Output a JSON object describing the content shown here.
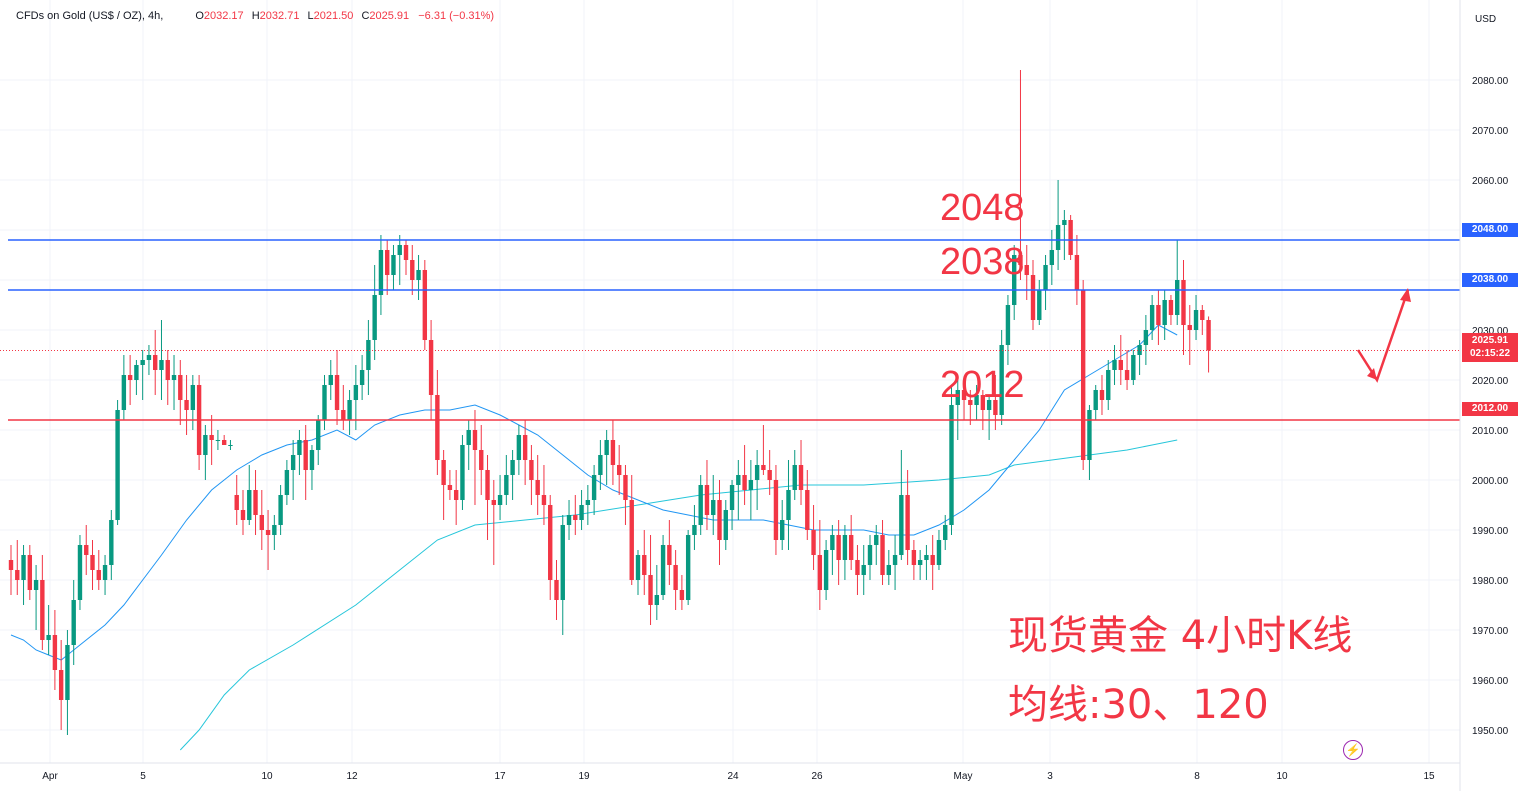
{
  "header": {
    "symbol": "CFDs on Gold (US$ / OZ), 4h,",
    "open_label": "O",
    "open": "2032.17",
    "high_label": "H",
    "high": "2032.71",
    "low_label": "L",
    "low": "2021.50",
    "close_label": "C",
    "close": "2025.91",
    "change": "−6.31 (−0.31%)"
  },
  "price_axis": {
    "currency": "USD",
    "ticks": [
      "2080.00",
      "2070.00",
      "2060.00",
      "2050.00",
      "2040.00",
      "2030.00",
      "2020.00",
      "2010.00",
      "2000.00",
      "1990.00",
      "1980.00",
      "1970.00",
      "1960.00",
      "1950.00"
    ]
  },
  "time_axis": {
    "labels": [
      "Apr",
      "5",
      "10",
      "12",
      "17",
      "19",
      "24",
      "26",
      "May",
      "3",
      "8",
      "10",
      "15"
    ]
  },
  "levels": [
    {
      "value": "2048.00",
      "color": "#2962ff"
    },
    {
      "value": "2038.00",
      "color": "#2962ff"
    },
    {
      "value": "2012.00",
      "color": "#f23645"
    }
  ],
  "current_price": {
    "value": "2025.91",
    "countdown": "02:15:22"
  },
  "annotations": {
    "level_2048": "2048",
    "level_2038": "2038",
    "level_2012": "2012",
    "title_line1": "现货黄金 4小时K线",
    "title_line2": "均线:30、120"
  },
  "colors": {
    "up": "#089981",
    "down": "#f23645",
    "ma30": "#2196f3",
    "ma120": "#26c6da",
    "grid": "#f0f3fa"
  },
  "icons": {
    "flash": "lightning-icon"
  },
  "chart_data": {
    "type": "candlestick",
    "interval": "4h",
    "ylim": [
      1941,
      2090
    ],
    "ohlc": [
      [
        1984,
        1987,
        1977,
        1982
      ],
      [
        1982,
        1988,
        1977,
        1980
      ],
      [
        1980,
        1987,
        1975,
        1985
      ],
      [
        1985,
        1987,
        1976,
        1978
      ],
      [
        1978,
        1983,
        1970,
        1980
      ],
      [
        1980,
        1985,
        1966,
        1968
      ],
      [
        1968,
        1975,
        1965,
        1969
      ],
      [
        1969,
        1974,
        1958,
        1962
      ],
      [
        1962,
        1968,
        1950,
        1956
      ],
      [
        1956,
        1970,
        1949,
        1967
      ],
      [
        1967,
        1980,
        1963,
        1976
      ],
      [
        1976,
        1989,
        1974,
        1987
      ],
      [
        1987,
        1991,
        1981,
        1985
      ],
      [
        1985,
        1988,
        1978,
        1982
      ],
      [
        1982,
        1986,
        1978,
        1980
      ],
      [
        1980,
        1985,
        1977,
        1983
      ],
      [
        1983,
        1994,
        1980,
        1992
      ],
      [
        1992,
        2016,
        1991,
        2014
      ],
      [
        2014,
        2025,
        2012,
        2021
      ],
      [
        2021,
        2025,
        2015,
        2020
      ],
      [
        2020,
        2024,
        2017,
        2023
      ],
      [
        2023,
        2026,
        2016,
        2024
      ],
      [
        2024,
        2027,
        2021,
        2025
      ],
      [
        2025,
        2030,
        2017,
        2022
      ],
      [
        2022,
        2032,
        2016,
        2024
      ],
      [
        2024,
        2026,
        2015,
        2020
      ],
      [
        2020,
        2025,
        2014,
        2021
      ],
      [
        2021,
        2024,
        2011,
        2016
      ],
      [
        2016,
        2021,
        2009,
        2014
      ],
      [
        2014,
        2021,
        2010,
        2019
      ],
      [
        2019,
        2021,
        2002,
        2005
      ],
      [
        2005,
        2011,
        2000,
        2009
      ],
      [
        2009,
        2013,
        2003,
        2008
      ],
      [
        2008,
        2010,
        2006,
        2008
      ],
      [
        2008,
        2009,
        2007,
        2007
      ],
      [
        2007,
        2008,
        2006,
        2007
      ],
      [
        1997,
        2001,
        1991,
        1994
      ],
      [
        1994,
        1998,
        1989,
        1992
      ],
      [
        1992,
        2003,
        1991,
        1998
      ],
      [
        1998,
        2002,
        1989,
        1993
      ],
      [
        1993,
        1998,
        1986,
        1990
      ],
      [
        1990,
        1994,
        1982,
        1989
      ],
      [
        1989,
        1993,
        1986,
        1991
      ],
      [
        1991,
        1999,
        1989,
        1997
      ],
      [
        1997,
        2004,
        1995,
        2002
      ],
      [
        2002,
        2008,
        1996,
        2005
      ],
      [
        2005,
        2010,
        2001,
        2008
      ],
      [
        2008,
        2011,
        1996,
        2002
      ],
      [
        2002,
        2007,
        1998,
        2006
      ],
      [
        2006,
        2013,
        2003,
        2012
      ],
      [
        2012,
        2021,
        2010,
        2019
      ],
      [
        2019,
        2024,
        2016,
        2021
      ],
      [
        2021,
        2026,
        2011,
        2014
      ],
      [
        2014,
        2019,
        2010,
        2012
      ],
      [
        2012,
        2018,
        2009,
        2016
      ],
      [
        2016,
        2023,
        2010,
        2019
      ],
      [
        2019,
        2025,
        2016,
        2022
      ],
      [
        2022,
        2032,
        2017,
        2028
      ],
      [
        2028,
        2043,
        2024,
        2037
      ],
      [
        2037,
        2049,
        2033,
        2046
      ],
      [
        2046,
        2048,
        2037,
        2041
      ],
      [
        2041,
        2047,
        2038,
        2045
      ],
      [
        2045,
        2049,
        2039,
        2047
      ],
      [
        2047,
        2048,
        2041,
        2044
      ],
      [
        2044,
        2047,
        2037,
        2040
      ],
      [
        2040,
        2045,
        2036,
        2042
      ],
      [
        2042,
        2044,
        2026,
        2028
      ],
      [
        2028,
        2032,
        2012,
        2017
      ],
      [
        2017,
        2022,
        2001,
        2004
      ],
      [
        2004,
        2006,
        1992,
        1999
      ],
      [
        1999,
        2002,
        1996,
        1998
      ],
      [
        1998,
        2002,
        1991,
        1996
      ],
      [
        1996,
        2009,
        1994,
        2007
      ],
      [
        2007,
        2012,
        2002,
        2010
      ],
      [
        2010,
        2014,
        1995,
        2006
      ],
      [
        2006,
        2011,
        1997,
        2002
      ],
      [
        2002,
        2005,
        1988,
        1996
      ],
      [
        1996,
        2000,
        1983,
        1995
      ],
      [
        1995,
        2001,
        1992,
        1997
      ],
      [
        1997,
        2005,
        1995,
        2001
      ],
      [
        2001,
        2006,
        1996,
        2004
      ],
      [
        2004,
        2011,
        2001,
        2009
      ],
      [
        2009,
        2012,
        1999,
        2004
      ],
      [
        2004,
        2007,
        1995,
        2000
      ],
      [
        2000,
        2005,
        1993,
        1997
      ],
      [
        1997,
        2003,
        1991,
        1995
      ],
      [
        1995,
        1997,
        1976,
        1980
      ],
      [
        1980,
        1984,
        1972,
        1976
      ],
      [
        1976,
        1993,
        1969,
        1991
      ],
      [
        1991,
        1996,
        1988,
        1993
      ],
      [
        1993,
        1997,
        1989,
        1992
      ],
      [
        1992,
        1998,
        1990,
        1995
      ],
      [
        1995,
        1999,
        1991,
        1996
      ],
      [
        1996,
        2003,
        1993,
        2001
      ],
      [
        2001,
        2008,
        1998,
        2005
      ],
      [
        2005,
        2010,
        1999,
        2008
      ],
      [
        2008,
        2012,
        1999,
        2003
      ],
      [
        2003,
        2007,
        1997,
        2001
      ],
      [
        2001,
        2003,
        1991,
        1996
      ],
      [
        1996,
        2001,
        1979,
        1980
      ],
      [
        1980,
        1986,
        1977,
        1985
      ],
      [
        1985,
        1990,
        1977,
        1981
      ],
      [
        1981,
        1989,
        1971,
        1975
      ],
      [
        1975,
        1983,
        1972,
        1977
      ],
      [
        1977,
        1989,
        1976,
        1987
      ],
      [
        1987,
        1992,
        1979,
        1983
      ],
      [
        1983,
        1986,
        1974,
        1978
      ],
      [
        1978,
        1981,
        1974,
        1976
      ],
      [
        1976,
        1990,
        1975,
        1989
      ],
      [
        1989,
        1995,
        1986,
        1991
      ],
      [
        1991,
        2001,
        1989,
        1999
      ],
      [
        1999,
        2004,
        1990,
        1993
      ],
      [
        1993,
        2001,
        1989,
        1996
      ],
      [
        1996,
        2000,
        1983,
        1988
      ],
      [
        1988,
        1996,
        1986,
        1994
      ],
      [
        1994,
        2000,
        1990,
        1999
      ],
      [
        1999,
        2004,
        1992,
        2001
      ],
      [
        2001,
        2007,
        1995,
        1998
      ],
      [
        1998,
        2004,
        1992,
        2000
      ],
      [
        2000,
        2006,
        1994,
        2003
      ],
      [
        2003,
        2011,
        2001,
        2002
      ],
      [
        2002,
        2006,
        1997,
        2000
      ],
      [
        2000,
        2003,
        1985,
        1988
      ],
      [
        1988,
        1996,
        1986,
        1992
      ],
      [
        1992,
        2004,
        1986,
        1998
      ],
      [
        1998,
        2006,
        1996,
        2003
      ],
      [
        2003,
        2008,
        1995,
        1998
      ],
      [
        1998,
        2002,
        1988,
        1990
      ],
      [
        1990,
        1995,
        1982,
        1985
      ],
      [
        1985,
        1992,
        1974,
        1978
      ],
      [
        1978,
        1988,
        1976,
        1986
      ],
      [
        1986,
        1991,
        1981,
        1989
      ],
      [
        1989,
        1992,
        1979,
        1984
      ],
      [
        1984,
        1991,
        1980,
        1989
      ],
      [
        1989,
        1993,
        1982,
        1984
      ],
      [
        1984,
        1987,
        1977,
        1981
      ],
      [
        1981,
        1987,
        1977,
        1983
      ],
      [
        1983,
        1989,
        1980,
        1987
      ],
      [
        1987,
        1991,
        1983,
        1989
      ],
      [
        1989,
        1992,
        1979,
        1981
      ],
      [
        1981,
        1986,
        1979,
        1983
      ],
      [
        1983,
        1989,
        1978,
        1985
      ],
      [
        1985,
        2006,
        1984,
        1997
      ],
      [
        1997,
        2002,
        1983,
        1986
      ],
      [
        1986,
        1988,
        1980,
        1983
      ],
      [
        1983,
        1986,
        1980,
        1984
      ],
      [
        1984,
        1987,
        1980,
        1985
      ],
      [
        1985,
        1989,
        1978,
        1983
      ],
      [
        1983,
        1990,
        1982,
        1988
      ],
      [
        1988,
        1993,
        1986,
        1991
      ],
      [
        1991,
        2019,
        1989,
        2015
      ],
      [
        2015,
        2020,
        2008,
        2018
      ],
      [
        2018,
        2020,
        2012,
        2016
      ],
      [
        2016,
        2018,
        2011,
        2015
      ],
      [
        2015,
        2019,
        2012,
        2017
      ],
      [
        2017,
        2018,
        2010,
        2014
      ],
      [
        2014,
        2017,
        2008,
        2016
      ],
      [
        2016,
        2021,
        2010,
        2013
      ],
      [
        2013,
        2030,
        2011,
        2027
      ],
      [
        2027,
        2037,
        2023,
        2035
      ],
      [
        2035,
        2047,
        2032,
        2045
      ],
      [
        2045,
        2082,
        2040,
        2043
      ],
      [
        2043,
        2047,
        2036,
        2041
      ],
      [
        2041,
        2044,
        2030,
        2032
      ],
      [
        2032,
        2040,
        2031,
        2038
      ],
      [
        2038,
        2045,
        2034,
        2043
      ],
      [
        2043,
        2050,
        2039,
        2046
      ],
      [
        2046,
        2060,
        2042,
        2051
      ],
      [
        2051,
        2054,
        2044,
        2052
      ],
      [
        2052,
        2053,
        2044,
        2045
      ],
      [
        2045,
        2049,
        2035,
        2038
      ],
      [
        2038,
        2040,
        2002,
        2004
      ],
      [
        2004,
        2015,
        2000,
        2014
      ],
      [
        2014,
        2019,
        2012,
        2018
      ],
      [
        2018,
        2021,
        2013,
        2016
      ],
      [
        2016,
        2024,
        2014,
        2022
      ],
      [
        2022,
        2027,
        2019,
        2024
      ],
      [
        2024,
        2029,
        2019,
        2022
      ],
      [
        2022,
        2026,
        2018,
        2020
      ],
      [
        2020,
        2026,
        2019,
        2025
      ],
      [
        2025,
        2028,
        2021,
        2027
      ],
      [
        2027,
        2033,
        2023,
        2030
      ],
      [
        2030,
        2037,
        2028,
        2035
      ],
      [
        2035,
        2038,
        2027,
        2031
      ],
      [
        2031,
        2038,
        2028,
        2036
      ],
      [
        2036,
        2037,
        2031,
        2033
      ],
      [
        2033,
        2048,
        2031,
        2040
      ],
      [
        2040,
        2044,
        2025,
        2031
      ],
      [
        2031,
        2035,
        2023,
        2030
      ],
      [
        2030,
        2037,
        2028,
        2034
      ],
      [
        2034,
        2035,
        2029,
        2032
      ],
      [
        2032,
        2032.71,
        2021.5,
        2025.91
      ]
    ],
    "ma30": [
      [
        0,
        1969
      ],
      [
        2,
        1968
      ],
      [
        4,
        1966
      ],
      [
        6,
        1965
      ],
      [
        8,
        1964
      ],
      [
        10,
        1966
      ],
      [
        12,
        1968
      ],
      [
        15,
        1971
      ],
      [
        18,
        1975
      ],
      [
        21,
        1980
      ],
      [
        24,
        1985
      ],
      [
        28,
        1992
      ],
      [
        32,
        1998
      ],
      [
        36,
        2002
      ],
      [
        40,
        2005
      ],
      [
        44,
        2007
      ],
      [
        48,
        2008
      ],
      [
        52,
        2010
      ],
      [
        55,
        2008
      ],
      [
        58,
        2011
      ],
      [
        62,
        2013
      ],
      [
        66,
        2014
      ],
      [
        70,
        2014
      ],
      [
        74,
        2015
      ],
      [
        78,
        2013
      ],
      [
        81,
        2011
      ],
      [
        84,
        2009
      ],
      [
        88,
        2005
      ],
      [
        92,
        2001
      ],
      [
        96,
        1998
      ],
      [
        100,
        1996
      ],
      [
        104,
        1994
      ],
      [
        108,
        1993
      ],
      [
        112,
        1992
      ],
      [
        116,
        1992
      ],
      [
        120,
        1992
      ],
      [
        124,
        1991
      ],
      [
        128,
        1990
      ],
      [
        132,
        1990
      ],
      [
        136,
        1990
      ],
      [
        140,
        1989
      ],
      [
        144,
        1989
      ],
      [
        148,
        1991
      ],
      [
        152,
        1994
      ],
      [
        156,
        1998
      ],
      [
        160,
        2004
      ],
      [
        164,
        2010
      ],
      [
        166,
        2014
      ],
      [
        168,
        2018
      ],
      [
        172,
        2021
      ],
      [
        176,
        2024
      ],
      [
        180,
        2027
      ],
      [
        183,
        2031
      ],
      [
        186,
        2029
      ]
    ],
    "ma120": [
      [
        27,
        1946
      ],
      [
        30,
        1950
      ],
      [
        34,
        1957
      ],
      [
        38,
        1962
      ],
      [
        45,
        1967
      ],
      [
        55,
        1975
      ],
      [
        62,
        1982
      ],
      [
        68,
        1988
      ],
      [
        74,
        1991
      ],
      [
        82,
        1992
      ],
      [
        90,
        1993
      ],
      [
        100,
        1995
      ],
      [
        110,
        1997
      ],
      [
        118,
        1998
      ],
      [
        126,
        1999
      ],
      [
        136,
        1999
      ],
      [
        148,
        2000
      ],
      [
        156,
        2001
      ],
      [
        160,
        2003
      ],
      [
        166,
        2004
      ],
      [
        172,
        2005
      ],
      [
        178,
        2006
      ],
      [
        182,
        2007
      ],
      [
        186,
        2008
      ]
    ],
    "projection_arrow": {
      "points": [
        [
          1358,
          2026
        ],
        [
          1377,
          2020
        ],
        [
          1408,
          2038
        ]
      ]
    }
  }
}
